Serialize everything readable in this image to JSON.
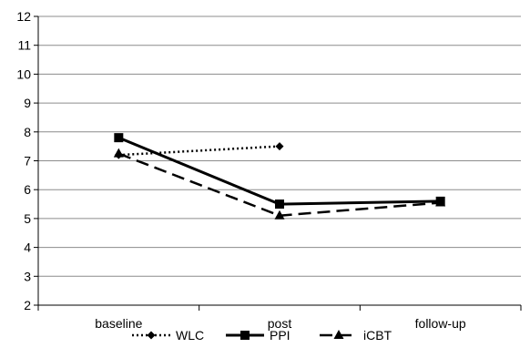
{
  "chart_data": {
    "type": "line",
    "categories": [
      "baseline",
      "post",
      "follow-up"
    ],
    "ylim": [
      2,
      12
    ],
    "yticks": [
      2,
      3,
      4,
      5,
      6,
      7,
      8,
      9,
      10,
      11,
      12
    ],
    "grid": true,
    "legend_position": "bottom",
    "series": [
      {
        "name": "WLC",
        "values": [
          7.2,
          7.5,
          null
        ],
        "style": "dotted",
        "marker": "diamond",
        "color": "#000000"
      },
      {
        "name": "PPI",
        "values": [
          7.8,
          5.5,
          5.6
        ],
        "style": "solid",
        "marker": "square",
        "color": "#000000"
      },
      {
        "name": "iCBT",
        "values": [
          7.25,
          5.1,
          5.55
        ],
        "style": "dashed",
        "marker": "triangle",
        "color": "#000000"
      }
    ]
  }
}
